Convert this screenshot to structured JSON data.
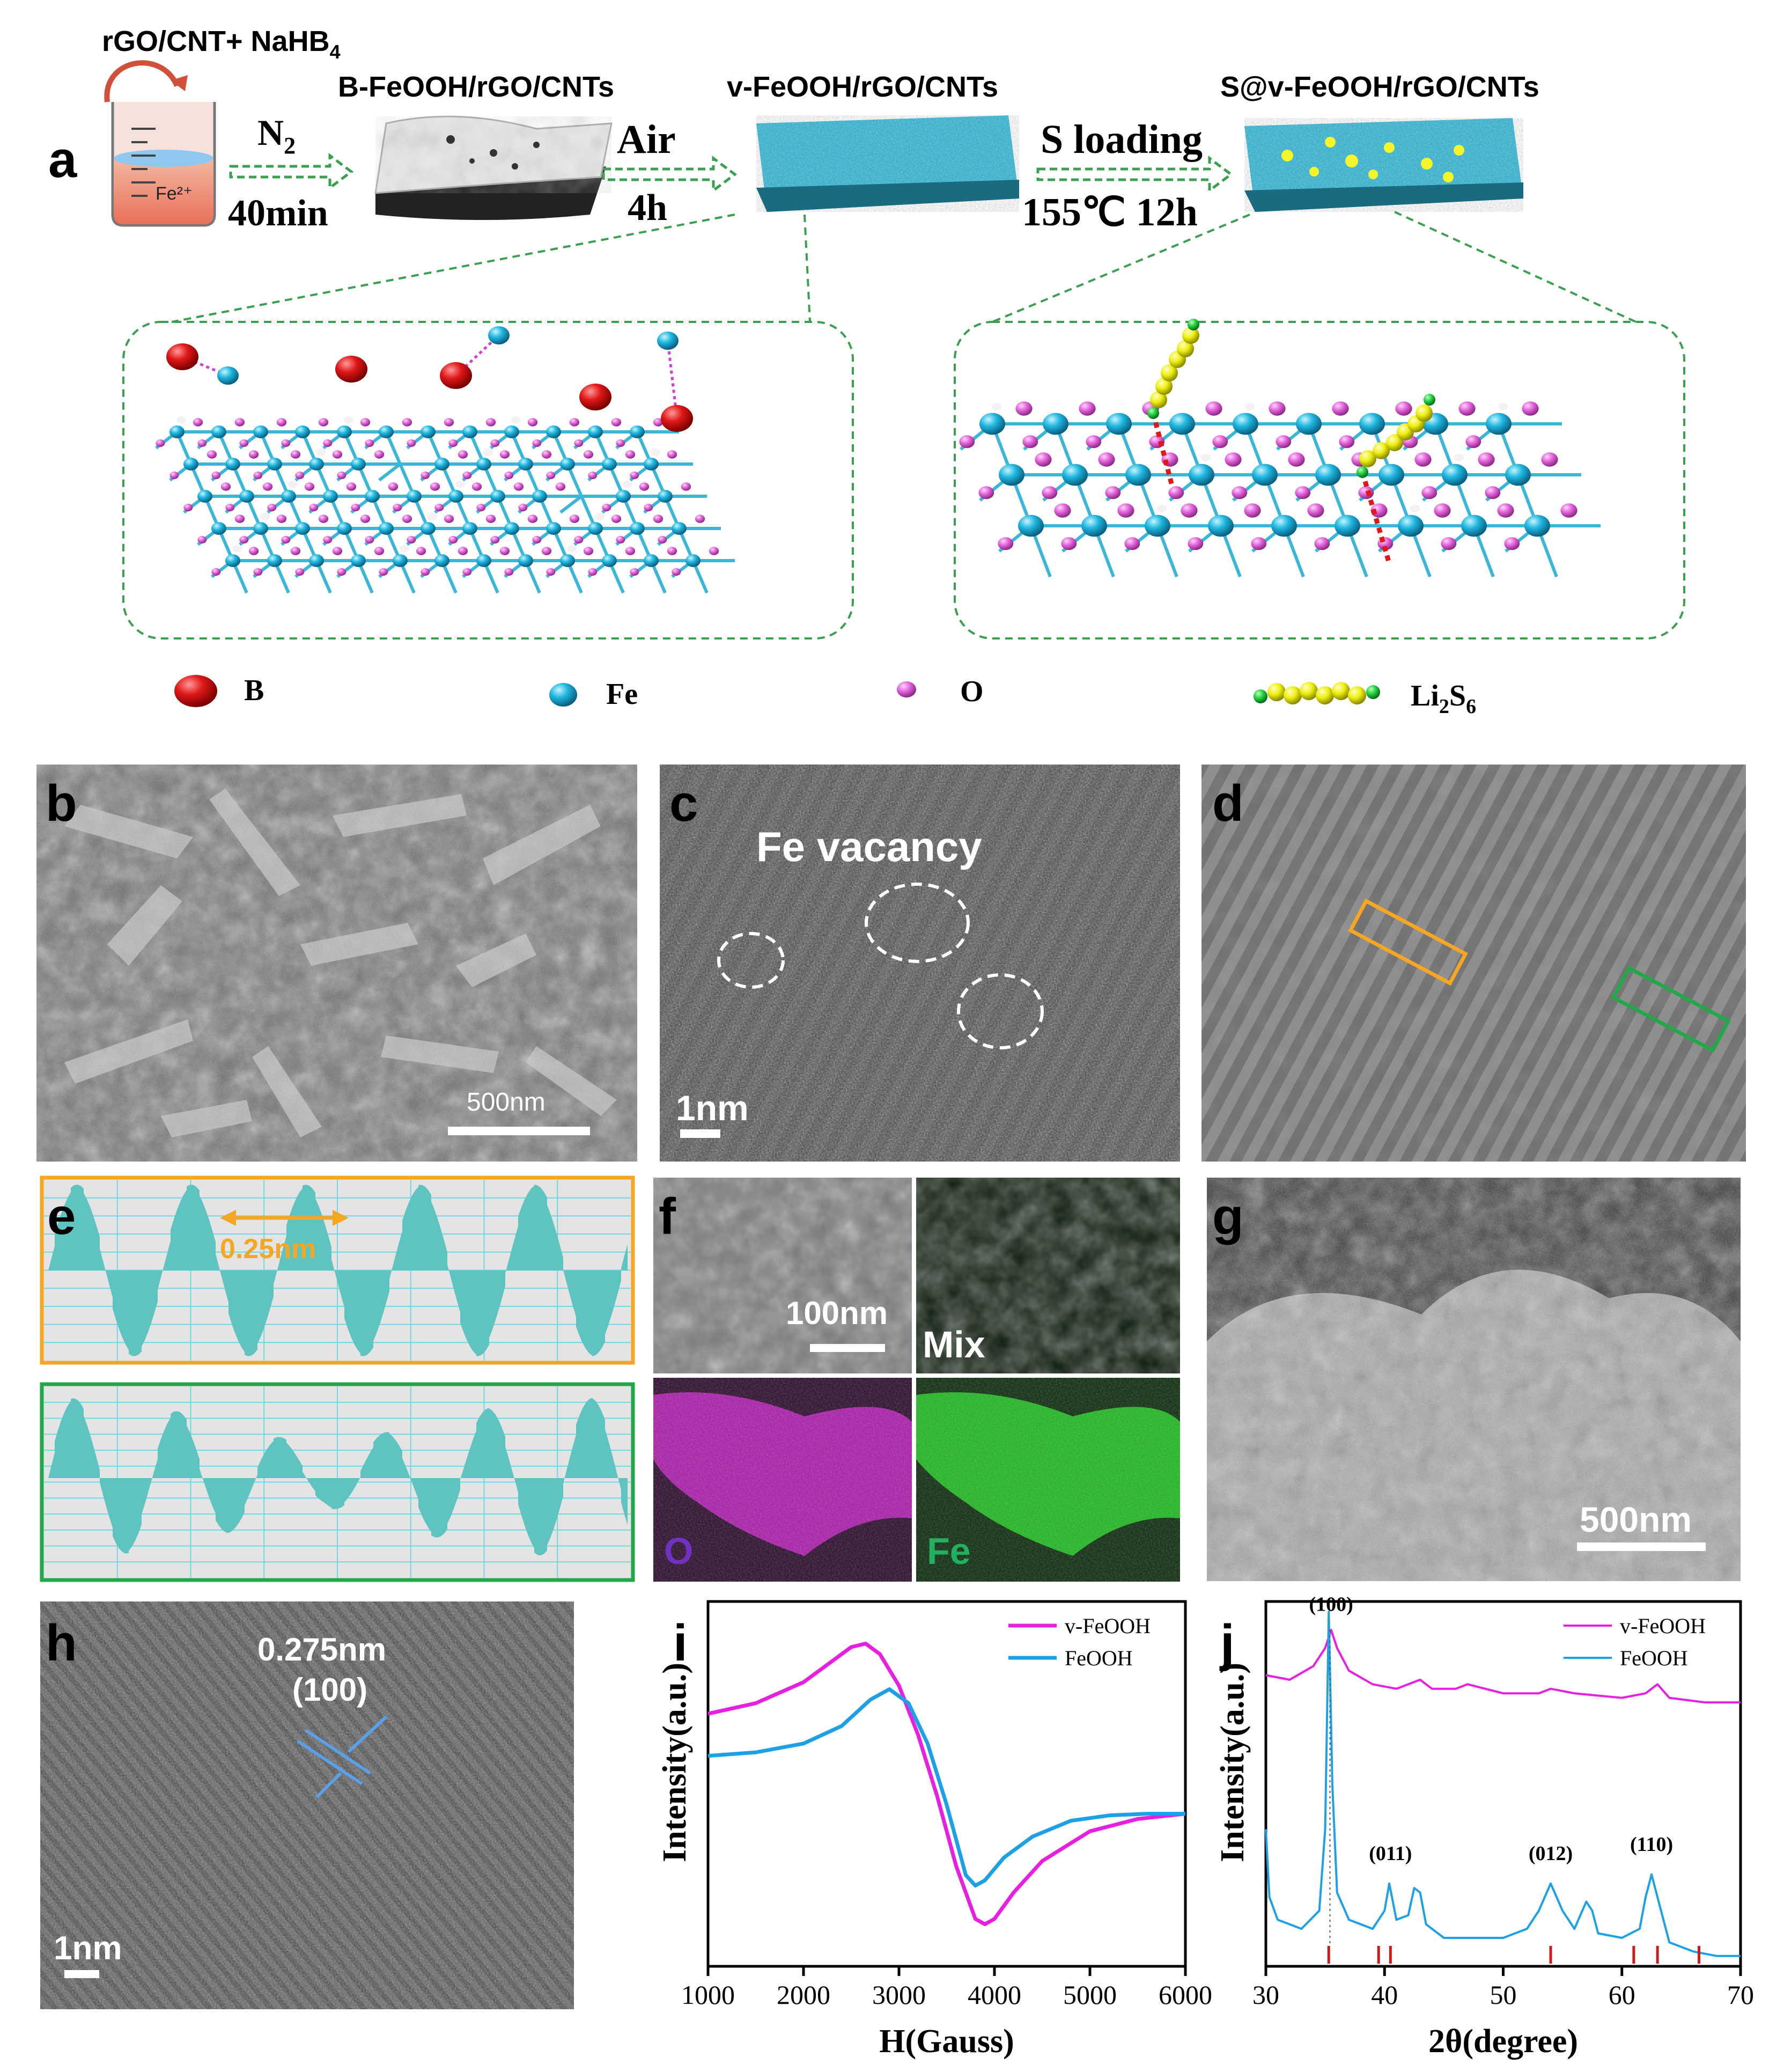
{
  "panels": {
    "a": "a",
    "b": "b",
    "c": "c",
    "d": "d",
    "e": "e",
    "f": "f",
    "g": "g",
    "h": "h",
    "i": "i",
    "j": "j"
  },
  "scheme": {
    "reagents": "rGO/CNT+ NaHB",
    "reagents_sub": "4",
    "beaker_label": "Fe²⁺",
    "stage1": "B-FeOOH/rGO/CNTs",
    "stage2": "v-FeOOH/rGO/CNTs",
    "stage3": "S@v-FeOOH/rGO/CNTs",
    "step1_gas": "N",
    "step1_gas_sub": "2",
    "step1_time": "40min",
    "step2_gas": "Air",
    "step2_time": "4h",
    "step3_label": "S loading",
    "step3_cond": "155℃ 12h",
    "legend": [
      {
        "label": "B",
        "color": "#e01818"
      },
      {
        "label": "Fe",
        "color": "#1fb7e0"
      },
      {
        "label": "O",
        "color": "#e060d8"
      },
      {
        "label": "Li",
        "sub1": "2",
        "mid": "S",
        "sub2": "6",
        "color": "#f0f020"
      }
    ]
  },
  "images": {
    "b_scale": "500nm",
    "c_label": "Fe vacancy",
    "c_scale": "1nm",
    "e_spacing": "0.25nm",
    "f_scale": "100nm",
    "f_mix": "Mix",
    "f_o": "O",
    "f_fe": "Fe",
    "g_scale": "500nm",
    "h_spacing": "0.275nm",
    "h_plane": "(100)",
    "h_scale": "1nm"
  },
  "colors": {
    "orange_box": "#f5a623",
    "green_box": "#22a84a",
    "profile_fill": "#5fc4c0",
    "v_feooh": "#e81ee0",
    "feooh": "#1ea0e6"
  },
  "chart_data": [
    {
      "type": "line",
      "panel": "i",
      "xlabel": "H(Gauss)",
      "ylabel": "Intensity(a.u.)",
      "xlim": [
        1000,
        6000
      ],
      "xticks": [
        "1000",
        "2000",
        "3000",
        "4000",
        "5000",
        "6000"
      ],
      "legend_position": "top-right",
      "series": [
        {
          "name": "v-FeOOH",
          "x": [
            1000,
            1500,
            2000,
            2300,
            2500,
            2650,
            2800,
            3000,
            3200,
            3400,
            3600,
            3800,
            3900,
            4000,
            4200,
            4500,
            5000,
            5500,
            6000
          ],
          "y": [
            0.62,
            0.68,
            0.8,
            0.92,
            1.0,
            1.02,
            0.96,
            0.78,
            0.5,
            0.15,
            -0.25,
            -0.55,
            -0.58,
            -0.55,
            -0.4,
            -0.22,
            -0.05,
            0.02,
            0.05
          ]
        },
        {
          "name": "FeOOH",
          "x": [
            1000,
            1500,
            2000,
            2400,
            2700,
            2900,
            3100,
            3300,
            3500,
            3700,
            3800,
            3900,
            4100,
            4400,
            4800,
            5200,
            5600,
            6000
          ],
          "y": [
            0.38,
            0.4,
            0.45,
            0.55,
            0.7,
            0.76,
            0.68,
            0.45,
            0.1,
            -0.3,
            -0.36,
            -0.33,
            -0.2,
            -0.08,
            0.01,
            0.04,
            0.05,
            0.05
          ]
        }
      ]
    },
    {
      "type": "line",
      "panel": "j",
      "xlabel": "2θ(degree)",
      "ylabel": "Intensity(a.u.)",
      "xlim": [
        30,
        70
      ],
      "xticks": [
        "30",
        "40",
        "50",
        "60",
        "70"
      ],
      "legend_position": "top-right",
      "series": [
        {
          "name": "v-FeOOH",
          "x": [
            30,
            32,
            34,
            35,
            35.5,
            36,
            37,
            39,
            41,
            43,
            44,
            46,
            47,
            50,
            53,
            54,
            56,
            60,
            62,
            63,
            64,
            67,
            70
          ],
          "y": [
            0.74,
            0.73,
            0.76,
            0.8,
            0.84,
            0.8,
            0.75,
            0.72,
            0.71,
            0.73,
            0.71,
            0.71,
            0.72,
            0.7,
            0.7,
            0.71,
            0.7,
            0.69,
            0.7,
            0.72,
            0.69,
            0.68,
            0.68
          ]
        },
        {
          "name": "FeOOH",
          "x": [
            30,
            30.3,
            31,
            33,
            34.5,
            35,
            35.3,
            35.6,
            36,
            37,
            39,
            40,
            40.4,
            41,
            42,
            42.5,
            43,
            43.5,
            45,
            50,
            52,
            53,
            54,
            55,
            56,
            57,
            57.5,
            58,
            60,
            61.5,
            62,
            62.5,
            63,
            64,
            66,
            68,
            70
          ],
          "y": [
            0.4,
            0.25,
            0.2,
            0.18,
            0.22,
            0.4,
            0.88,
            0.5,
            0.26,
            0.2,
            0.18,
            0.22,
            0.28,
            0.2,
            0.21,
            0.27,
            0.26,
            0.19,
            0.16,
            0.16,
            0.18,
            0.22,
            0.28,
            0.22,
            0.18,
            0.24,
            0.22,
            0.17,
            0.16,
            0.18,
            0.25,
            0.3,
            0.25,
            0.15,
            0.13,
            0.12,
            0.12
          ]
        }
      ],
      "annotations": [
        "(100)",
        "(011)",
        "(012)",
        "(110)"
      ],
      "reference_ticks": [
        35.3,
        39.5,
        40.5,
        54.0,
        61.0,
        63.0,
        66.5
      ]
    }
  ]
}
